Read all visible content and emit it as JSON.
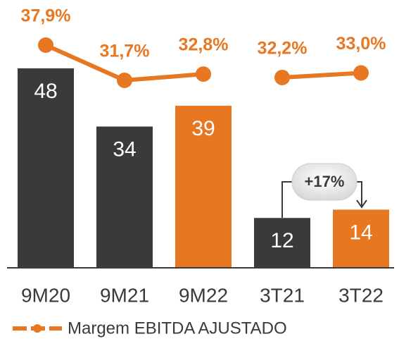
{
  "chart_data": {
    "type": "bar",
    "categories": [
      "9M20",
      "9M21",
      "9M22",
      "3T21",
      "3T22"
    ],
    "series": [
      {
        "name": "EBITDA",
        "type": "bar",
        "colors": [
          "#3a3a3a",
          "#3a3a3a",
          "#e87722",
          "#3a3a3a",
          "#e87722"
        ],
        "values": [
          48,
          34,
          39,
          12,
          14
        ]
      },
      {
        "name": "Margem EBITDA AJUSTADO",
        "type": "line",
        "color": "#e87722",
        "values": [
          37.9,
          31.7,
          32.8,
          32.2,
          33.0
        ],
        "value_labels": [
          "37,9%",
          "31,7%",
          "32,8%",
          "32,2%",
          "33,0%"
        ]
      }
    ],
    "annotation": "+17%"
  }
}
